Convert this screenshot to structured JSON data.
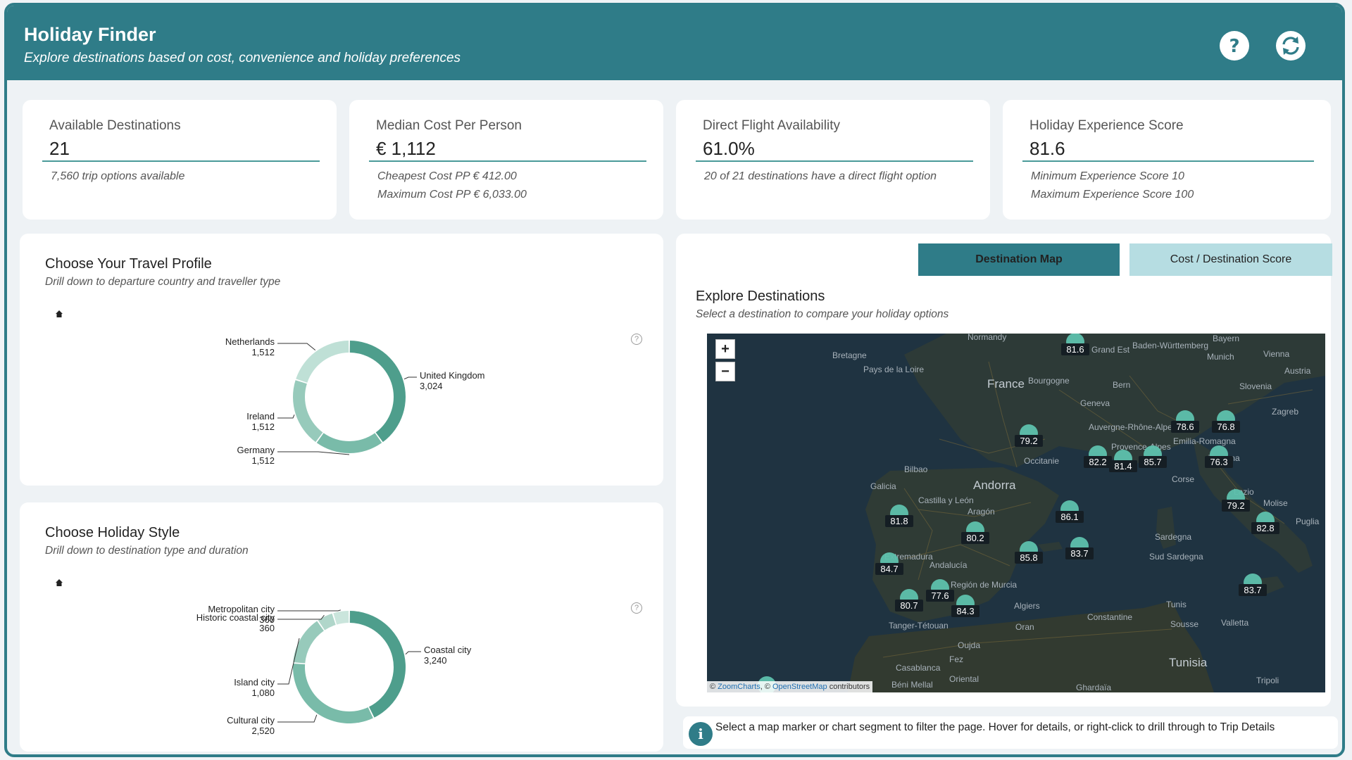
{
  "header": {
    "title": "Holiday Finder",
    "subtitle": "Explore destinations based on cost, convenience and holiday preferences",
    "help_icon": "help-icon",
    "refresh_icon": "refresh-icon"
  },
  "kpis": [
    {
      "label": "Available Destinations",
      "value": "21",
      "sub1": "7,560 trip options available",
      "sub2": ""
    },
    {
      "label": "Median Cost Per Person",
      "value": "€ 1,112",
      "sub1": "Cheapest Cost PP € 412.00",
      "sub2": "Maximum Cost PP € 6,033.00"
    },
    {
      "label": "Direct Flight Availability",
      "value": "61.0%",
      "sub1": "20 of 21 destinations have a direct flight option",
      "sub2": ""
    },
    {
      "label": "Holiday Experience Score",
      "value": "81.6",
      "sub1_label": "Minimum Experience Score",
      "sub1_value": "10",
      "sub2_label": "Maximum Experience Score",
      "sub2_value": "100"
    }
  ],
  "travel_profile": {
    "title": "Choose Your Travel Profile",
    "subtitle": "Drill down to departure country and traveller type"
  },
  "holiday_style": {
    "title": "Choose Holiday Style",
    "subtitle": "Drill down to destination type and duration"
  },
  "chart_data": [
    {
      "type": "pie",
      "donut": true,
      "categories": [
        "United Kingdom",
        "Germany",
        "Ireland",
        "Netherlands"
      ],
      "values": [
        3024,
        1512,
        1512,
        1512
      ],
      "value_labels": [
        "3,024",
        "1,512",
        "1,512",
        "1,512"
      ],
      "colors": [
        "#4e9e8c",
        "#79bba9",
        "#97cabb",
        "#bfe0d6"
      ]
    },
    {
      "type": "pie",
      "donut": true,
      "categories": [
        "Coastal city",
        "Cultural city",
        "Island city",
        "Historic coastal city",
        "Metropolitan city"
      ],
      "values": [
        3240,
        2520,
        1080,
        360,
        360
      ],
      "value_labels": [
        "3,240",
        "2,520",
        "1,080",
        "360",
        "360"
      ],
      "colors": [
        "#4e9e8c",
        "#79bba9",
        "#97cabb",
        "#b0d6ca",
        "#cae5dc"
      ]
    }
  ],
  "tabs": {
    "map_label": "Destination Map",
    "score_label": "Cost / Destination Score"
  },
  "explore": {
    "title": "Explore Destinations",
    "subtitle": "Select a destination to compare your holiday options"
  },
  "map": {
    "zoom_in": "+",
    "zoom_out": "−",
    "attribution_prefix": "© ",
    "attribution_link1": "ZoomCharts",
    "attribution_mid": ", © ",
    "attribution_link2": "OpenStreetMap",
    "attribution_suffix": " contributors",
    "places": [
      "France",
      "Andorra",
      "Tunisia",
      "Normandy",
      "Bretagne",
      "Pays de la Loire",
      "Grand Est",
      "Baden-Württemberg",
      "Bayern",
      "Munich",
      "Vienna",
      "Bern",
      "Geneva",
      "Bourgogne",
      "Zagreb",
      "Bilbao",
      "Galicia",
      "Algiers",
      "Constantine",
      "Tunis",
      "Sousse",
      "Valletta",
      "Tripoli",
      "Oran",
      "Oujda",
      "Fez",
      "Casablanca",
      "Ghardaïa",
      "Sardegna",
      "Corse",
      "Occitanie",
      "Provence-Alpes",
      "Auvergne-Rhône-Alpes",
      "Emilia-Romagna",
      "Toscana",
      "Lazio",
      "Molise",
      "Puglia",
      "Aragón",
      "Castilla y León",
      "Extremadura",
      "Andalucía",
      "Región de Murcia",
      "Tanger-Tétouan",
      "Oriental",
      "Béni Mellal",
      "Sud Sardegna",
      "Slovenia",
      "Austria"
    ],
    "markers": [
      {
        "value": "81.6"
      },
      {
        "value": "78.6"
      },
      {
        "value": "76.8"
      },
      {
        "value": "79.2"
      },
      {
        "value": "82.2"
      },
      {
        "value": "81.4"
      },
      {
        "value": "85.7"
      },
      {
        "value": "76.3"
      },
      {
        "value": "79.2"
      },
      {
        "value": "82.8"
      },
      {
        "value": "81.8"
      },
      {
        "value": "80.2"
      },
      {
        "value": "86.1"
      },
      {
        "value": "85.8"
      },
      {
        "value": "83.7"
      },
      {
        "value": "84.7"
      },
      {
        "value": "77.6"
      },
      {
        "value": "80.7"
      },
      {
        "value": "84.3"
      },
      {
        "value": "83.7"
      },
      {
        "value": ""
      }
    ]
  },
  "info_bar": {
    "text": "Select a map marker or chart segment to filter the page. Hover for details, or right-click to drill through to Trip Details"
  }
}
